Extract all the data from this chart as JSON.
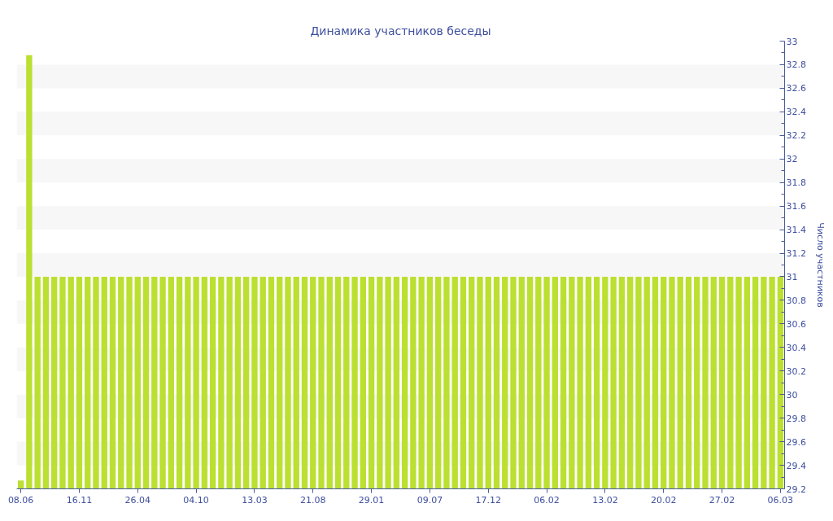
{
  "chart_data": {
    "type": "bar",
    "title": "Динамика участников беседы",
    "ylabel": "Число участников",
    "categories": [
      "08.06",
      null,
      null,
      null,
      null,
      null,
      null,
      "16.11",
      null,
      null,
      null,
      null,
      null,
      null,
      "26.04",
      null,
      null,
      null,
      null,
      null,
      null,
      "04.10",
      null,
      null,
      null,
      null,
      null,
      null,
      "13.03",
      null,
      null,
      null,
      null,
      null,
      null,
      "21.08",
      null,
      null,
      null,
      null,
      null,
      null,
      "29.01",
      null,
      null,
      null,
      null,
      null,
      null,
      "09.07",
      null,
      null,
      null,
      null,
      null,
      null,
      "17.12",
      null,
      null,
      null,
      null,
      null,
      null,
      "06.02",
      null,
      null,
      null,
      null,
      null,
      null,
      "13.02",
      null,
      null,
      null,
      null,
      null,
      null,
      "20.02",
      null,
      null,
      null,
      null,
      null,
      null,
      "27.02",
      null,
      null,
      null,
      null,
      null,
      null,
      "06.03"
    ],
    "values": [
      29.27,
      32.88,
      31,
      31,
      31,
      31,
      31,
      31,
      31,
      31,
      31,
      31,
      31,
      31,
      31,
      31,
      31,
      31,
      31,
      31,
      31,
      31,
      31,
      31,
      31,
      31,
      31,
      31,
      31,
      31,
      31,
      31,
      31,
      31,
      31,
      31,
      31,
      31,
      31,
      31,
      31,
      31,
      31,
      31,
      31,
      31,
      31,
      31,
      31,
      31,
      31,
      31,
      31,
      31,
      31,
      31,
      31,
      31,
      31,
      31,
      31,
      31,
      31,
      31,
      31,
      31,
      31,
      31,
      31,
      31,
      31,
      31,
      31,
      31,
      31,
      31,
      31,
      31,
      31,
      31,
      31,
      31,
      31,
      31,
      31,
      31,
      31,
      31,
      31,
      31,
      31,
      31
    ],
    "color": "#bbe031",
    "ylim": [
      29.2,
      33
    ],
    "yticks": [
      29.2,
      {
        "value": 29.3,
        "label": null
      },
      29.4,
      {
        "value": 29.5,
        "label": null
      },
      29.6,
      {
        "value": 29.7,
        "label": null
      },
      29.8,
      {
        "value": 29.9,
        "label": null
      },
      30,
      {
        "value": 30.1,
        "label": null
      },
      30.2,
      {
        "value": 30.3,
        "label": null
      },
      30.4,
      {
        "value": 30.5,
        "label": null
      },
      30.6,
      {
        "value": 30.7,
        "label": null
      },
      30.8,
      {
        "value": 30.9,
        "label": null
      },
      31,
      {
        "value": 31.1,
        "label": null
      },
      31.2,
      {
        "value": 31.3,
        "label": null
      },
      31.4,
      {
        "value": 31.5,
        "label": null
      },
      31.6,
      {
        "value": 31.7,
        "label": null
      },
      31.8,
      {
        "value": 31.9,
        "label": null
      },
      32,
      {
        "value": 32.1,
        "label": null
      },
      32.2,
      {
        "value": 32.3,
        "label": null
      },
      32.4,
      {
        "value": 32.5,
        "label": null
      },
      32.6,
      {
        "value": 32.7,
        "label": null
      },
      32.8,
      {
        "value": 32.9,
        "label": null
      },
      33
    ],
    "bands": [
      {
        "axis": "y",
        "from": 29.4,
        "to": 29.6,
        "color": "#f7f7f7"
      },
      {
        "axis": "y",
        "from": 29.8,
        "to": 30,
        "color": "#f7f7f7"
      },
      {
        "axis": "y",
        "from": 30.2,
        "to": 30.4,
        "color": "#f7f7f7"
      },
      {
        "axis": "y",
        "from": 30.6,
        "to": 30.8,
        "color": "#f7f7f7"
      },
      {
        "axis": "y",
        "from": 31,
        "to": 31.2,
        "color": "#f7f7f7"
      },
      {
        "axis": "y",
        "from": 31.4,
        "to": 31.6,
        "color": "#f7f7f7"
      },
      {
        "axis": "y",
        "from": 31.8,
        "to": 32,
        "color": "#f7f7f7"
      },
      {
        "axis": "y",
        "from": 32.2,
        "to": 32.4,
        "color": "#f7f7f7"
      },
      {
        "axis": "y",
        "from": 32.6,
        "to": 32.8,
        "color": "#f7f7f7"
      }
    ]
  }
}
